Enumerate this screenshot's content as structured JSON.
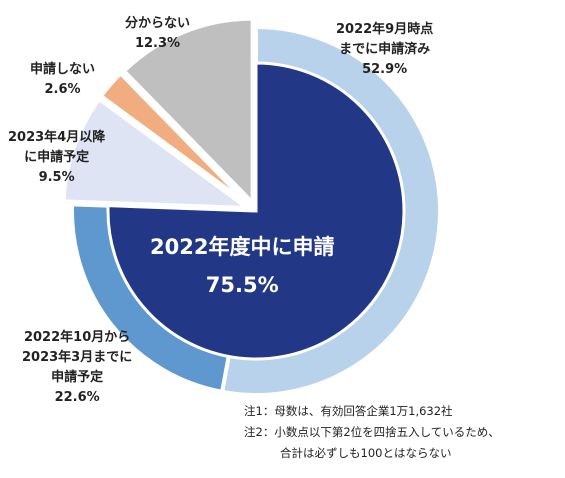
{
  "chart_data": {
    "type": "pie",
    "center": {
      "title": "2022年度中に申請",
      "value": "75.5%"
    },
    "slices": [
      {
        "label_lines": [
          "2022年9月時点",
          "までに申請済み"
        ],
        "value": 52.9,
        "value_text": "52.9%",
        "color": "#b9d2ec",
        "ring": "outer"
      },
      {
        "label_lines": [
          "2022年10月から",
          "2023年3月までに",
          "申請予定"
        ],
        "value": 22.6,
        "value_text": "22.6%",
        "color": "#5e98cf",
        "ring": "outer"
      },
      {
        "label_lines": [
          "2023年4月以降",
          "に申請予定"
        ],
        "value": 9.5,
        "value_text": "9.5%",
        "color": "#dfe4f5",
        "ring": "full"
      },
      {
        "label_lines": [
          "申請しない"
        ],
        "value": 2.6,
        "value_text": "2.6%",
        "color": "#f1ad80",
        "ring": "full"
      },
      {
        "label_lines": [
          "分からない"
        ],
        "value": 12.3,
        "value_text": "12.3%",
        "color": "#bfbfbf",
        "ring": "full"
      }
    ],
    "inner_total": {
      "value": 75.5,
      "color": "#233787"
    },
    "notes": [
      "注1：母数は、有効回答企業1万1,632社",
      "注2：小数点以下第2位を四捨五入しているため、",
      "合計は必ずしも100とはならない"
    ]
  }
}
